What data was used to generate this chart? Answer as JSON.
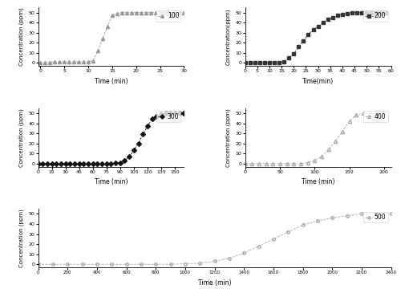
{
  "plots": [
    {
      "label": "100",
      "marker": "^",
      "color": "#999999",
      "linestyle": "--",
      "markersize": 3,
      "fillstyle": "full",
      "x": [
        0,
        1,
        2,
        3,
        4,
        5,
        6,
        7,
        8,
        9,
        10,
        11,
        12,
        13,
        14,
        15,
        16,
        17,
        18,
        19,
        20,
        21,
        22,
        23,
        24,
        25,
        26,
        27,
        28,
        29,
        30
      ],
      "y": [
        0,
        0.5,
        0.5,
        1,
        1,
        1,
        1,
        1,
        1,
        1,
        1,
        2,
        12,
        24,
        36,
        47,
        49,
        50,
        50,
        50,
        50,
        50,
        50,
        50,
        50,
        50,
        50,
        50,
        50,
        50,
        50
      ],
      "xlim": [
        -0.5,
        30
      ],
      "ylim": [
        -3,
        55
      ],
      "xticks": [
        0,
        5,
        10,
        15,
        20,
        25,
        30
      ],
      "yticks": [
        0,
        10,
        20,
        30,
        40,
        50
      ],
      "xlabel": "Time (min)",
      "ylabel": "Concentration (ppm)",
      "legend_loc": "upper right",
      "position": "top_left"
    },
    {
      "label": "200",
      "marker": "s",
      "color": "#333333",
      "linestyle": "--",
      "markersize": 3,
      "fillstyle": "full",
      "x": [
        0,
        2,
        4,
        6,
        8,
        10,
        12,
        14,
        16,
        18,
        20,
        22,
        24,
        26,
        28,
        30,
        32,
        34,
        36,
        38,
        40,
        42,
        44,
        46,
        48,
        50,
        52,
        54,
        56,
        58
      ],
      "y": [
        0,
        0,
        0,
        0,
        0,
        0,
        0,
        0,
        1,
        5,
        9,
        16,
        22,
        28,
        33,
        36,
        40,
        43,
        45,
        47,
        48,
        49,
        50,
        50,
        50,
        50,
        50,
        50,
        50,
        50
      ],
      "xlim": [
        0,
        60
      ],
      "ylim": [
        -3,
        55
      ],
      "xticks": [
        0,
        5,
        10,
        15,
        20,
        25,
        30,
        35,
        40,
        45,
        50,
        55,
        60
      ],
      "yticks": [
        0,
        10,
        20,
        30,
        40,
        50
      ],
      "xlabel": "Time(min)",
      "ylabel": "Concentration(ppm)",
      "legend_loc": "upper right",
      "position": "top_right"
    },
    {
      "label": "300",
      "marker": "D",
      "color": "#111111",
      "linestyle": "--",
      "markersize": 3,
      "fillstyle": "full",
      "x": [
        0,
        5,
        10,
        15,
        20,
        25,
        30,
        35,
        40,
        45,
        50,
        55,
        60,
        65,
        70,
        75,
        80,
        85,
        90,
        95,
        100,
        105,
        110,
        115,
        120,
        125,
        130,
        135,
        140,
        145,
        150,
        155,
        160
      ],
      "y": [
        0,
        0,
        0,
        0,
        0,
        0,
        0,
        0,
        0,
        0,
        0,
        0,
        0,
        0,
        0,
        0,
        0,
        0.5,
        1,
        3,
        7,
        13,
        20,
        29,
        37,
        44,
        47,
        49,
        50,
        50,
        50,
        50,
        50
      ],
      "xlim": [
        0,
        160
      ],
      "ylim": [
        -3,
        55
      ],
      "xticks": [
        0,
        15,
        30,
        45,
        60,
        75,
        90,
        105,
        120,
        135,
        150
      ],
      "yticks": [
        0,
        10,
        20,
        30,
        40,
        50
      ],
      "xlabel": "Time (min)",
      "ylabel": "Concentration (ppm)",
      "legend_loc": "upper right",
      "position": "mid_left"
    },
    {
      "label": "400",
      "marker": "^",
      "color": "#aaaaaa",
      "linestyle": "--",
      "markersize": 3,
      "fillstyle": "none",
      "x": [
        0,
        10,
        20,
        30,
        40,
        50,
        60,
        70,
        80,
        90,
        100,
        110,
        120,
        130,
        140,
        150,
        160,
        170,
        180,
        190,
        200
      ],
      "y": [
        0,
        0,
        0,
        0,
        0,
        0,
        0,
        0,
        0,
        1,
        3,
        7,
        14,
        22,
        32,
        42,
        48,
        50,
        50,
        50,
        50
      ],
      "xlim": [
        0,
        210
      ],
      "ylim": [
        -3,
        55
      ],
      "xticks": [
        0,
        50,
        100,
        150,
        200
      ],
      "yticks": [
        0,
        10,
        20,
        30,
        40,
        50
      ],
      "xlabel": "Time (min)",
      "ylabel": "Concentration (ppm)",
      "legend_loc": "upper right",
      "position": "mid_right"
    },
    {
      "label": "500",
      "marker": "o",
      "color": "#aaaaaa",
      "linestyle": "--",
      "markersize": 2.5,
      "fillstyle": "none",
      "x": [
        0,
        100,
        200,
        300,
        400,
        500,
        600,
        700,
        800,
        900,
        1000,
        1100,
        1200,
        1300,
        1400,
        1500,
        1600,
        1700,
        1800,
        1900,
        2000,
        2100,
        2200,
        2300,
        2400
      ],
      "y": [
        0,
        0,
        0,
        0,
        0,
        0,
        0,
        0,
        0,
        0,
        0.5,
        1,
        3,
        6,
        11,
        18,
        25,
        32,
        39,
        43,
        46,
        48,
        50,
        50,
        50
      ],
      "xlim": [
        0,
        2400
      ],
      "ylim": [
        -3,
        55
      ],
      "xticks": [
        0,
        200,
        400,
        600,
        800,
        1000,
        1200,
        1400,
        1600,
        1800,
        2000,
        2200,
        2400
      ],
      "yticks": [
        0,
        10,
        20,
        30,
        40,
        50
      ],
      "xlabel": "Time (min)",
      "ylabel": "Concentration (ppm)",
      "legend_loc": "upper right",
      "position": "bottom"
    }
  ]
}
